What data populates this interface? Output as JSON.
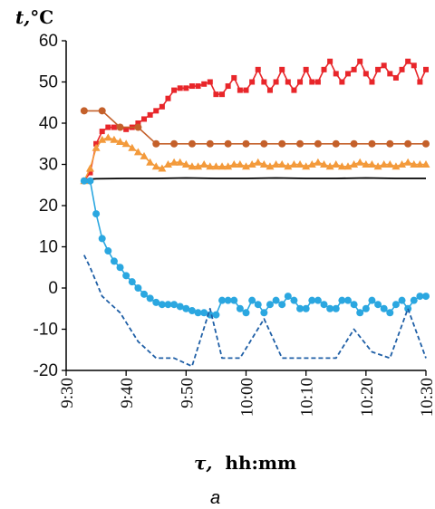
{
  "chart_data": {
    "type": "line",
    "title": "",
    "ylabel_symbol": "t,",
    "ylabel_unit": "°C",
    "xlabel_symbol": "τ,",
    "xlabel_unit": "hh:mm",
    "panel_label": "a",
    "ylim": [
      -20,
      60
    ],
    "yticks": [
      -20,
      -10,
      0,
      10,
      20,
      30,
      40,
      50,
      60
    ],
    "ytick_labels": [
      "-20",
      "-10",
      "0",
      "10",
      "20",
      "30",
      "40",
      "50",
      "60"
    ],
    "xlim": [
      "9:30",
      "10:30"
    ],
    "xticks": [
      "9:30",
      "9:40",
      "9:50",
      "10:00",
      "10:10",
      "10:20",
      "10:30"
    ],
    "grid": false,
    "legend": "none",
    "series": [
      {
        "color": "#e8262a",
        "marker": "square",
        "line": "solid",
        "x": [
          "9:33",
          "9:34",
          "9:35",
          "9:36",
          "9:37",
          "9:38",
          "9:39",
          "9:40",
          "9:41",
          "9:42",
          "9:43",
          "9:44",
          "9:45",
          "9:46",
          "9:47",
          "9:48",
          "9:49",
          "9:50",
          "9:51",
          "9:52",
          "9:53",
          "9:54",
          "9:55",
          "9:56",
          "9:57",
          "9:58",
          "9:59",
          "10:00",
          "10:01",
          "10:02",
          "10:03",
          "10:04",
          "10:05",
          "10:06",
          "10:07",
          "10:08",
          "10:09",
          "10:10",
          "10:11",
          "10:12",
          "10:13",
          "10:14",
          "10:15",
          "10:16",
          "10:17",
          "10:18",
          "10:19",
          "10:20",
          "10:21",
          "10:22",
          "10:23",
          "10:24",
          "10:25",
          "10:26",
          "10:27",
          "10:28",
          "10:29",
          "10:30"
        ],
        "y": [
          26,
          28,
          35,
          38,
          39,
          39,
          39,
          38.5,
          39,
          40,
          41,
          42,
          43,
          44,
          46,
          48,
          48.5,
          48.5,
          49,
          49,
          49.5,
          50,
          47,
          47,
          49,
          51,
          48,
          48,
          50,
          53,
          50,
          48,
          50,
          53,
          50,
          48,
          50,
          53,
          50,
          50,
          53,
          55,
          52,
          50,
          52,
          53,
          55,
          52,
          50,
          53,
          54,
          52,
          51,
          53,
          55,
          54,
          50,
          53
        ]
      },
      {
        "color": "#c4602a",
        "marker": "circle",
        "line": "solid",
        "x": [
          "9:33",
          "9:36",
          "9:39",
          "9:42",
          "9:45",
          "9:48",
          "9:51",
          "9:54",
          "9:57",
          "10:00",
          "10:03",
          "10:06",
          "10:09",
          "10:12",
          "10:15",
          "10:18",
          "10:21",
          "10:24",
          "10:27",
          "10:30"
        ],
        "y": [
          43,
          43,
          39,
          39,
          35,
          35,
          35,
          35,
          35,
          35,
          35,
          35,
          35,
          35,
          35,
          35,
          35,
          35,
          35,
          35
        ]
      },
      {
        "color": "#f39a3b",
        "marker": "triangle",
        "line": "solid",
        "x": [
          "9:33",
          "9:34",
          "9:35",
          "9:36",
          "9:37",
          "9:38",
          "9:39",
          "9:40",
          "9:41",
          "9:42",
          "9:43",
          "9:44",
          "9:45",
          "9:46",
          "9:47",
          "9:48",
          "9:49",
          "9:50",
          "9:51",
          "9:52",
          "9:53",
          "9:54",
          "9:55",
          "9:56",
          "9:57",
          "9:58",
          "9:59",
          "10:00",
          "10:01",
          "10:02",
          "10:03",
          "10:04",
          "10:05",
          "10:06",
          "10:07",
          "10:08",
          "10:09",
          "10:10",
          "10:11",
          "10:12",
          "10:13",
          "10:14",
          "10:15",
          "10:16",
          "10:17",
          "10:18",
          "10:19",
          "10:20",
          "10:21",
          "10:22",
          "10:23",
          "10:24",
          "10:25",
          "10:26",
          "10:27",
          "10:28",
          "10:29",
          "10:30"
        ],
        "y": [
          26,
          29,
          34,
          36,
          36.5,
          36,
          35.5,
          35,
          34,
          33,
          32,
          30.5,
          29.5,
          29,
          30,
          30.5,
          30.5,
          30,
          29.5,
          29.5,
          30,
          29.5,
          29.5,
          29.5,
          29.5,
          30,
          30,
          29.5,
          30,
          30.5,
          30,
          29.5,
          30,
          30,
          29.5,
          30,
          30,
          29.5,
          30,
          30.5,
          30,
          29.5,
          30,
          29.5,
          29.5,
          30,
          30.5,
          30,
          30,
          29.5,
          30,
          30,
          29.5,
          30,
          30.5,
          30,
          30,
          30
        ]
      },
      {
        "color": "#000000",
        "marker": "none",
        "line": "solid",
        "x": [
          "9:33",
          "9:35",
          "9:40",
          "9:45",
          "9:50",
          "9:55",
          "10:00",
          "10:05",
          "10:10",
          "10:15",
          "10:20",
          "10:25",
          "10:30"
        ],
        "y": [
          26.3,
          26.5,
          26.6,
          26.6,
          26.7,
          26.6,
          26.6,
          26.7,
          26.6,
          26.6,
          26.7,
          26.6,
          26.6
        ]
      },
      {
        "color": "#2ba7e0",
        "marker": "circle",
        "line": "solid",
        "x": [
          "9:33",
          "9:34",
          "9:35",
          "9:36",
          "9:37",
          "9:38",
          "9:39",
          "9:40",
          "9:41",
          "9:42",
          "9:43",
          "9:44",
          "9:45",
          "9:46",
          "9:47",
          "9:48",
          "9:49",
          "9:50",
          "9:51",
          "9:52",
          "9:53",
          "9:54",
          "9:55",
          "9:56",
          "9:57",
          "9:58",
          "9:59",
          "10:00",
          "10:01",
          "10:02",
          "10:03",
          "10:04",
          "10:05",
          "10:06",
          "10:07",
          "10:08",
          "10:09",
          "10:10",
          "10:11",
          "10:12",
          "10:13",
          "10:14",
          "10:15",
          "10:16",
          "10:17",
          "10:18",
          "10:19",
          "10:20",
          "10:21",
          "10:22",
          "10:23",
          "10:24",
          "10:25",
          "10:26",
          "10:27",
          "10:28",
          "10:29",
          "10:30"
        ],
        "y": [
          26,
          26,
          18,
          12,
          9,
          6.5,
          5,
          3,
          1.5,
          0,
          -1.5,
          -2.5,
          -3.5,
          -4,
          -4,
          -4,
          -4.5,
          -5,
          -5.5,
          -6,
          -6,
          -6.5,
          -6.5,
          -3,
          -3,
          -3,
          -5,
          -6,
          -3,
          -4,
          -6,
          -4,
          -3,
          -4,
          -2,
          -3,
          -5,
          -5,
          -3,
          -3,
          -4,
          -5,
          -5,
          -3,
          -3,
          -4,
          -6,
          -5,
          -3,
          -4,
          -5,
          -6,
          -4,
          -3,
          -5,
          -3,
          -2,
          -2
        ]
      },
      {
        "color": "#1f5fa6",
        "marker": "none",
        "line": "dashed",
        "x": [
          "9:33",
          "9:34",
          "9:36",
          "9:39",
          "9:42",
          "9:45",
          "9:48",
          "9:51",
          "9:54",
          "9:56",
          "9:59",
          "10:03",
          "10:06",
          "10:09",
          "10:12",
          "10:15",
          "10:18",
          "10:21",
          "10:24",
          "10:27",
          "10:30"
        ],
        "y": [
          8,
          5,
          -2,
          -6,
          -13,
          -17,
          -17,
          -19,
          -5,
          -17,
          -17,
          -7.5,
          -17,
          -17,
          -17,
          -17,
          -10,
          -15.5,
          -17,
          -5,
          -17
        ]
      }
    ]
  }
}
